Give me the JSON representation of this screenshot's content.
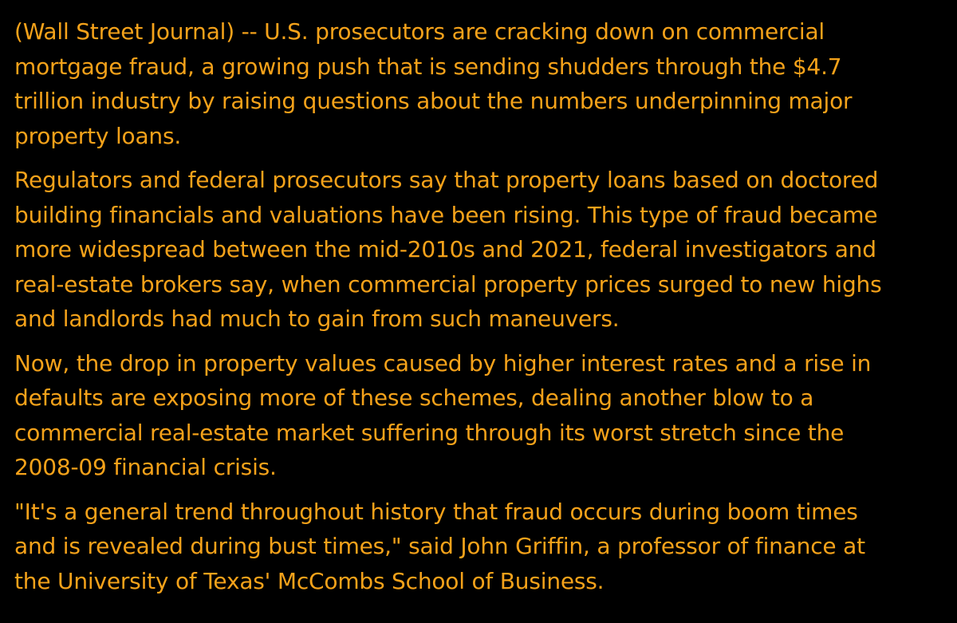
{
  "article": {
    "paragraphs": [
      {
        "lines": [
          "(Wall Street Journal) -- U.S. prosecutors are cracking down on commercial",
          "mortgage fraud, a growing push that is sending shudders through the $4.7",
          "trillion industry by raising questions about the numbers underpinning major",
          "property loans."
        ]
      },
      {
        "lines": [
          "Regulators and federal prosecutors say that property loans based on doctored",
          "building financials and valuations have been rising. This type of fraud became",
          "more widespread between the mid-2010s and 2021, federal investigators and",
          "real-estate brokers say, when commercial property prices surged to new highs",
          "and landlords had much to gain from such maneuvers."
        ]
      },
      {
        "lines": [
          "Now, the drop in property values caused by higher interest rates and a rise in",
          "defaults are exposing more of these schemes, dealing another blow to a",
          "commercial real-estate market suffering through its worst stretch since the",
          "2008-09 financial crisis."
        ]
      },
      {
        "lines": [
          "\"It's a general trend throughout history that fraud occurs during boom times",
          "and is revealed during bust times,\" said John Griffin, a professor of finance at",
          "the University of Texas' McCombs School of Business."
        ]
      }
    ]
  },
  "colors": {
    "background": "#000000",
    "text": "#f5a21a"
  }
}
